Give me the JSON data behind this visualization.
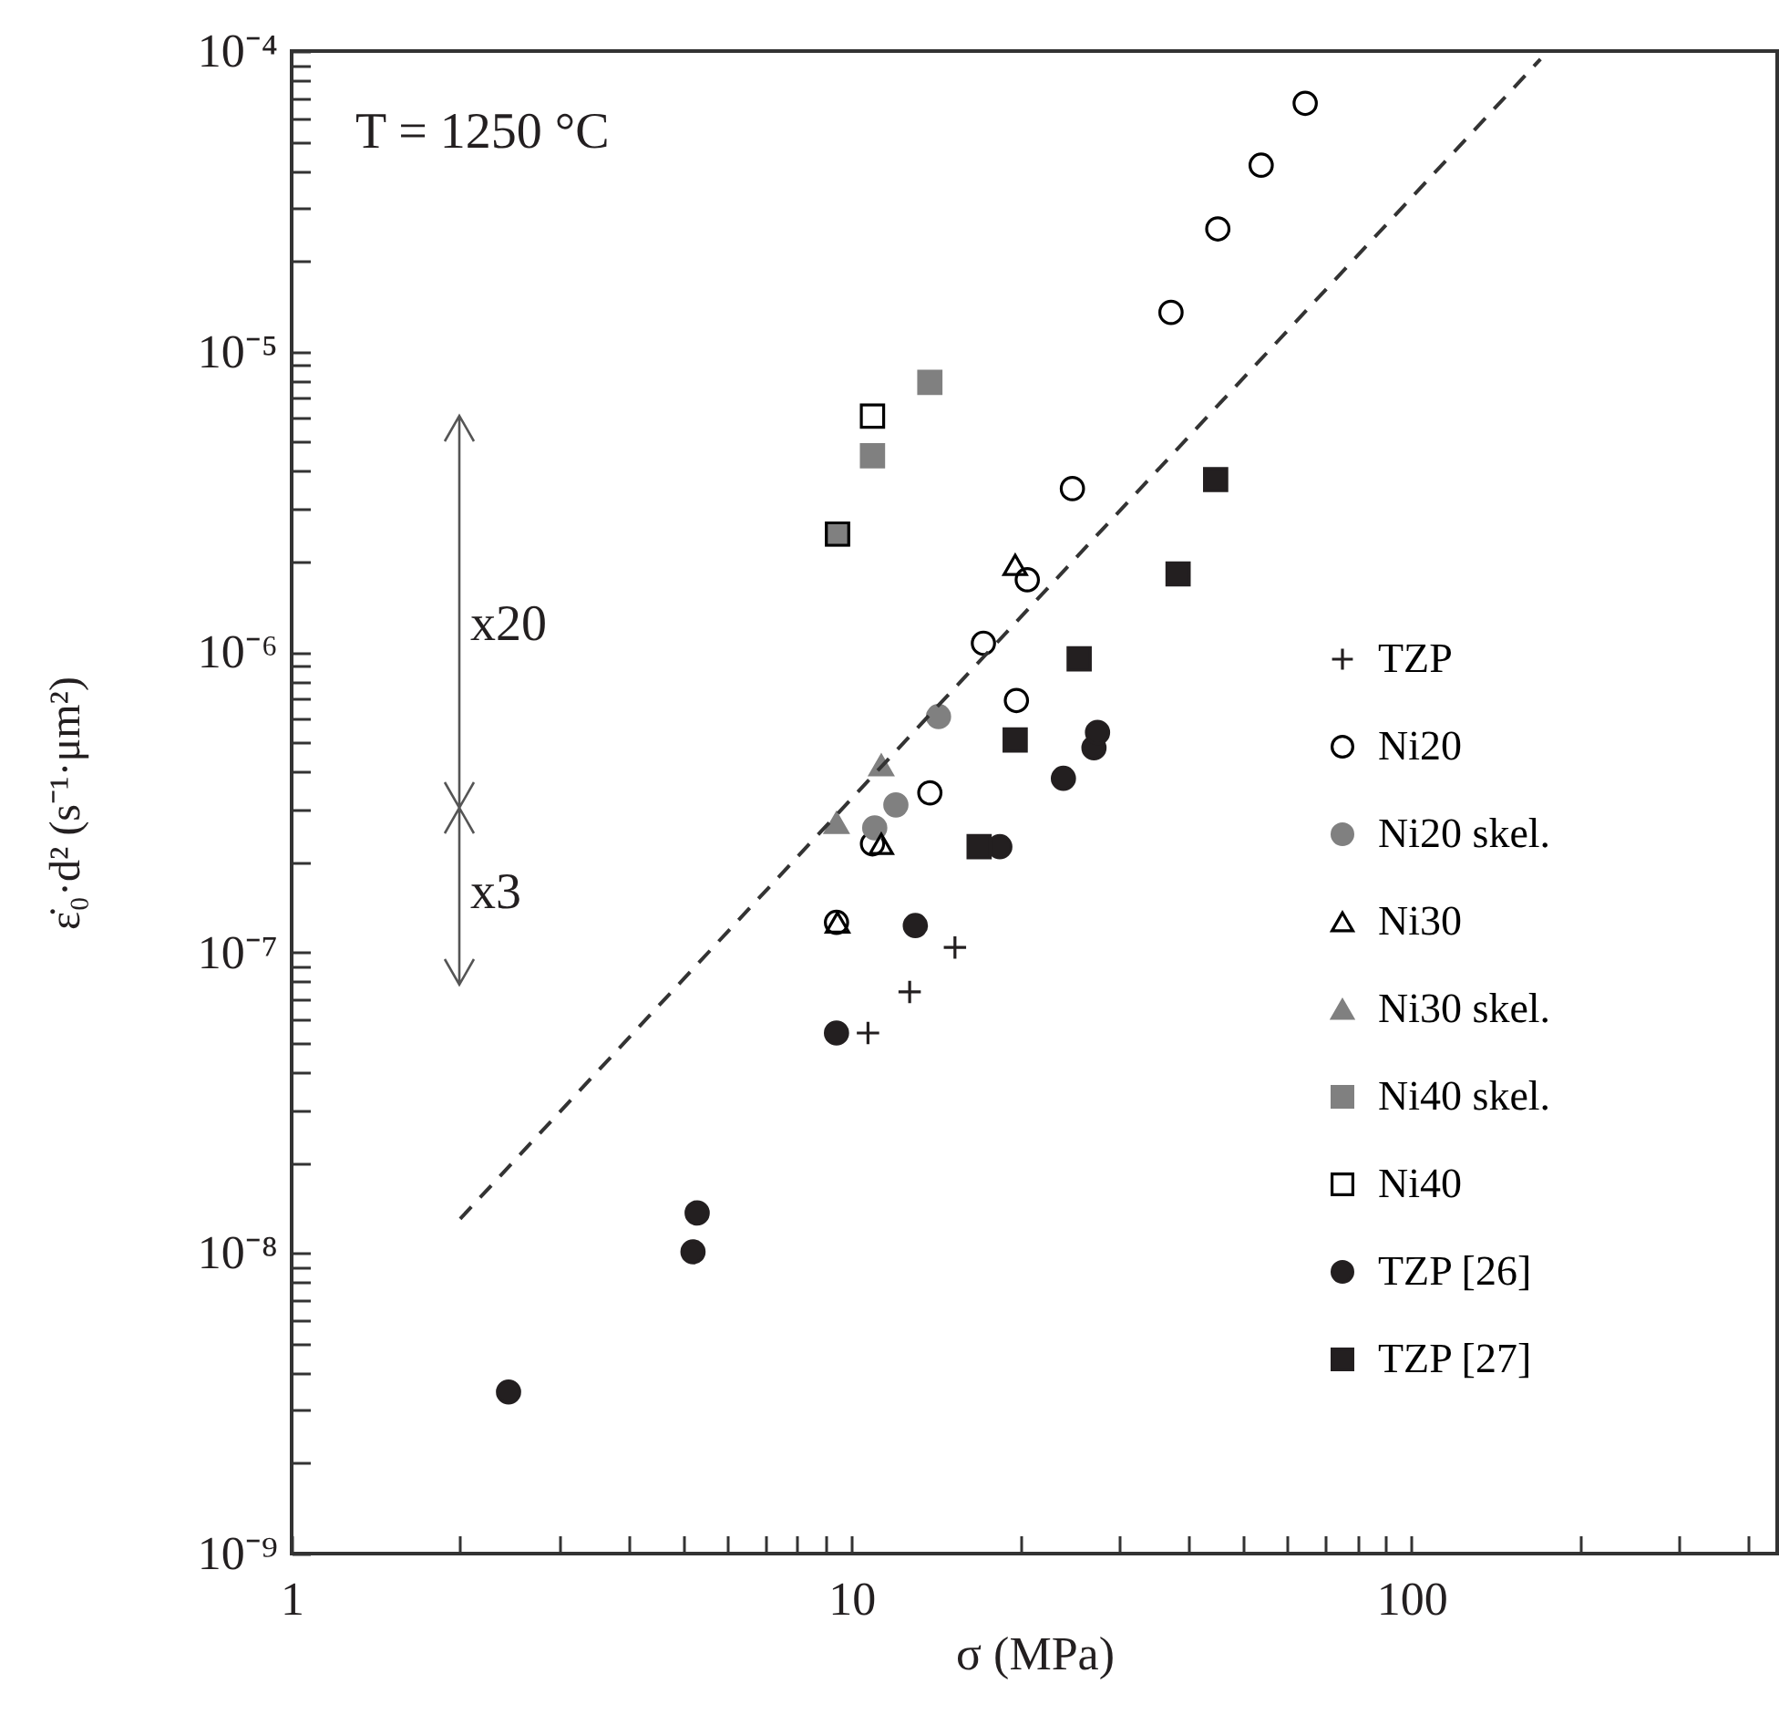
{
  "chart_data": {
    "type": "scatter",
    "log": "xy",
    "xlabel": "σ (MPa)",
    "ylabel": "ε̇₀·d² (s⁻¹·μm²)",
    "xlim": [
      1,
      450
    ],
    "ylim": [
      1e-09,
      0.0001
    ],
    "xticks": [
      1,
      {
        "value": 2,
        "label": null
      },
      {
        "value": 3,
        "label": null
      },
      {
        "value": 4,
        "label": null
      },
      {
        "value": 5,
        "label": null
      },
      {
        "value": 6,
        "label": null
      },
      {
        "value": 7,
        "label": null
      },
      {
        "value": 8,
        "label": null
      },
      {
        "value": 9,
        "label": null
      },
      10,
      {
        "value": 20,
        "label": null
      },
      {
        "value": 30,
        "label": null
      },
      {
        "value": 40,
        "label": null
      },
      {
        "value": 50,
        "label": null
      },
      {
        "value": 60,
        "label": null
      },
      {
        "value": 70,
        "label": null
      },
      {
        "value": 80,
        "label": null
      },
      {
        "value": 90,
        "label": null
      },
      100,
      {
        "value": 200,
        "label": null
      },
      {
        "value": 300,
        "label": null
      },
      {
        "value": 400,
        "label": null
      }
    ],
    "yticks": [
      {
        "value": 1e-09,
        "label": "10⁻⁹"
      },
      {
        "value": 2e-09,
        "label": null
      },
      {
        "value": 3e-09,
        "label": null
      },
      {
        "value": 4e-09,
        "label": null
      },
      {
        "value": 5e-09,
        "label": null
      },
      {
        "value": 6e-09,
        "label": null
      },
      {
        "value": 7e-09,
        "label": null
      },
      {
        "value": 8e-09,
        "label": null
      },
      {
        "value": 9e-09,
        "label": null
      },
      {
        "value": 1e-08,
        "label": "10⁻⁸"
      },
      {
        "value": 2e-08,
        "label": null
      },
      {
        "value": 3e-08,
        "label": null
      },
      {
        "value": 4e-08,
        "label": null
      },
      {
        "value": 5e-08,
        "label": null
      },
      {
        "value": 6e-08,
        "label": null
      },
      {
        "value": 7e-08,
        "label": null
      },
      {
        "value": 8e-08,
        "label": null
      },
      {
        "value": 9e-08,
        "label": null
      },
      {
        "value": 1e-07,
        "label": "10⁻⁷"
      },
      {
        "value": 2e-07,
        "label": null
      },
      {
        "value": 3e-07,
        "label": null
      },
      {
        "value": 4e-07,
        "label": null
      },
      {
        "value": 5e-07,
        "label": null
      },
      {
        "value": 6e-07,
        "label": null
      },
      {
        "value": 7e-07,
        "label": null
      },
      {
        "value": 8e-07,
        "label": null
      },
      {
        "value": 9e-07,
        "label": null
      },
      {
        "value": 1e-06,
        "label": "10⁻⁶"
      },
      {
        "value": 2e-06,
        "label": null
      },
      {
        "value": 3e-06,
        "label": null
      },
      {
        "value": 4e-06,
        "label": null
      },
      {
        "value": 5e-06,
        "label": null
      },
      {
        "value": 6e-06,
        "label": null
      },
      {
        "value": 7e-06,
        "label": null
      },
      {
        "value": 8e-06,
        "label": null
      },
      {
        "value": 9e-06,
        "label": null
      },
      {
        "value": 1e-05,
        "label": "10⁻⁵"
      },
      {
        "value": 2e-05,
        "label": null
      },
      {
        "value": 3e-05,
        "label": null
      },
      {
        "value": 4e-05,
        "label": null
      },
      {
        "value": 5e-05,
        "label": null
      },
      {
        "value": 6e-05,
        "label": null
      },
      {
        "value": 7e-05,
        "label": null
      },
      {
        "value": 8e-05,
        "label": null
      },
      {
        "value": 9e-05,
        "label": null
      },
      {
        "value": 0.0001,
        "label": "10⁻⁴"
      }
    ],
    "grid": false,
    "legend": "right",
    "annotations": [
      "T = 1250 °C",
      "x20",
      "x3"
    ],
    "series": [
      {
        "name": "TZP",
        "marker": "cross",
        "color": "#231f20",
        "x": [
          15.3,
          12.7,
          10.7
        ],
        "values": [
          1.04e-07,
          7.4e-08,
          5.4e-08
        ]
      },
      {
        "name": "Ni20",
        "marker": "circle",
        "color": "#000000",
        "x": [
          64.6,
          53.9,
          45.1,
          37.2,
          24.8,
          20.6,
          17.2,
          19.7,
          13.8,
          10.9,
          9.4
        ],
        "values": [
          6.7e-05,
          4.17e-05,
          2.56e-05,
          1.35e-05,
          3.5e-06,
          1.74e-06,
          1.07e-06,
          6.9e-07,
          3.4e-07,
          2.3e-07,
          1.26e-07
        ]
      },
      {
        "name": "Ni20 skel.",
        "marker": "circle",
        "color": "#808080",
        "x": [
          14.3,
          12.0,
          11.0
        ],
        "values": [
          6.1e-07,
          3.1e-07,
          2.6e-07
        ]
      },
      {
        "name": "Ni30",
        "marker": "triangle",
        "color": "#000000",
        "x": [
          19.6,
          11.3,
          9.44
        ],
        "values": [
          1.95e-06,
          2.3e-07,
          1.26e-07
        ]
      },
      {
        "name": "Ni30 skel.",
        "marker": "triangle",
        "color": "#808080",
        "x": [
          11.3,
          9.4
        ],
        "values": [
          4.2e-07,
          2.7e-07
        ]
      },
      {
        "name": "Ni40 skel.",
        "marker": "square",
        "color": "#808080",
        "x": [
          13.8,
          10.9,
          9.44
        ],
        "values": [
          7.9e-06,
          4.5e-06,
          2.47e-06
        ]
      },
      {
        "name": "Ni40",
        "marker": "square",
        "color": "#000000",
        "x": [
          10.9,
          9.44
        ],
        "values": [
          6.1e-06,
          2.47e-06
        ]
      },
      {
        "name": "TZP [26]",
        "marker": "circle",
        "color": "#231f20",
        "x": [
          23.9,
          27.1,
          27.5,
          18.4,
          13.0,
          9.4,
          5.3,
          5.21,
          2.44
        ],
        "values": [
          3.8e-07,
          4.8e-07,
          5.4e-07,
          2.25e-07,
          1.23e-07,
          5.4e-08,
          1.36e-08,
          1.01e-08,
          3.45e-09
        ]
      },
      {
        "name": "TZP [27]",
        "marker": "square",
        "color": "#231f20",
        "x": [
          44.7,
          38.3,
          25.5,
          19.6,
          16.9
        ],
        "values": [
          3.75e-06,
          1.82e-06,
          9.5e-07,
          5.1e-07,
          2.25e-07
        ]
      },
      {
        "type": "line",
        "line_style": "dashed",
        "color": "#333333",
        "x": [
          2,
          170
        ],
        "values": [
          1.3e-08,
          9.4e-05
        ]
      }
    ]
  }
}
